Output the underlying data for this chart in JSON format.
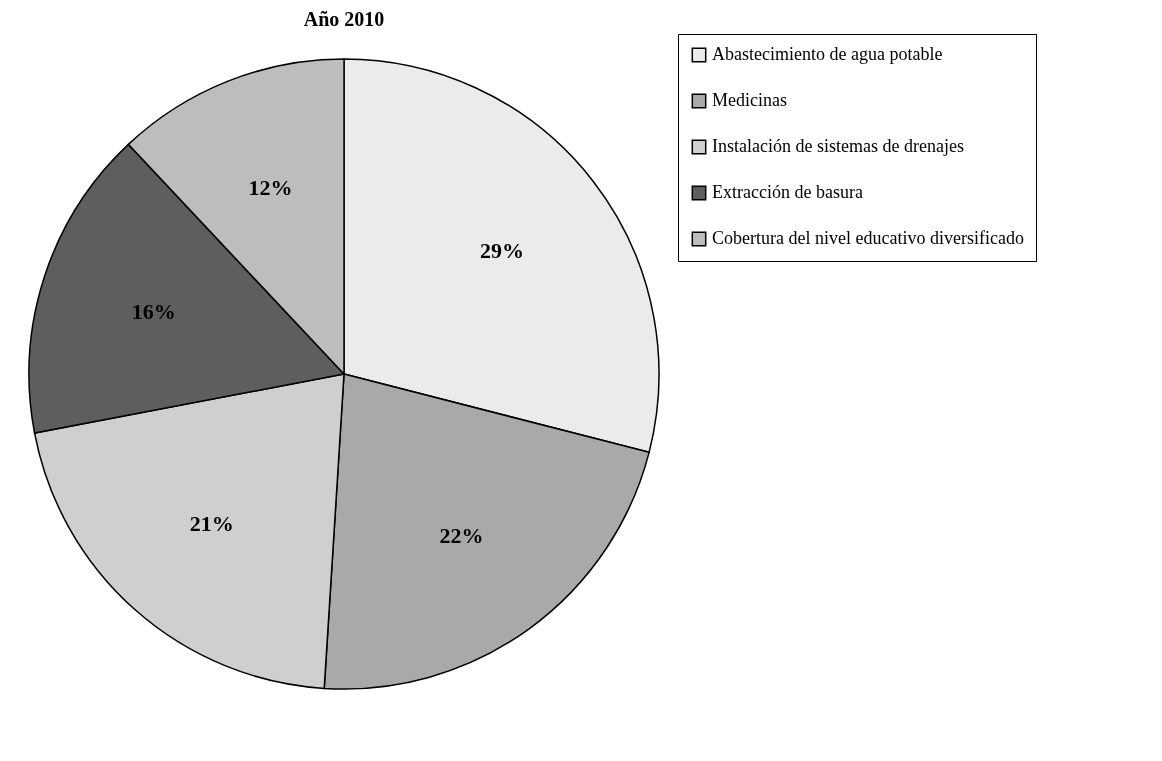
{
  "chart_data": {
    "type": "pie",
    "title": "Año 2010",
    "categories": [
      "Abastecimiento de agua potable",
      "Medicinas",
      "Instalación de sistemas de drenajes",
      "Extracción de basura",
      "Cobertura del nivel educativo diversificado"
    ],
    "values": [
      29,
      22,
      21,
      16,
      12
    ],
    "colors": [
      "#ebebeb",
      "#a9a9a9",
      "#cfcfcf",
      "#5e5e5e",
      "#bdbdbd"
    ],
    "value_labels": [
      "29%",
      "22%",
      "21%",
      "16%",
      "12%"
    ],
    "legend": "right"
  }
}
